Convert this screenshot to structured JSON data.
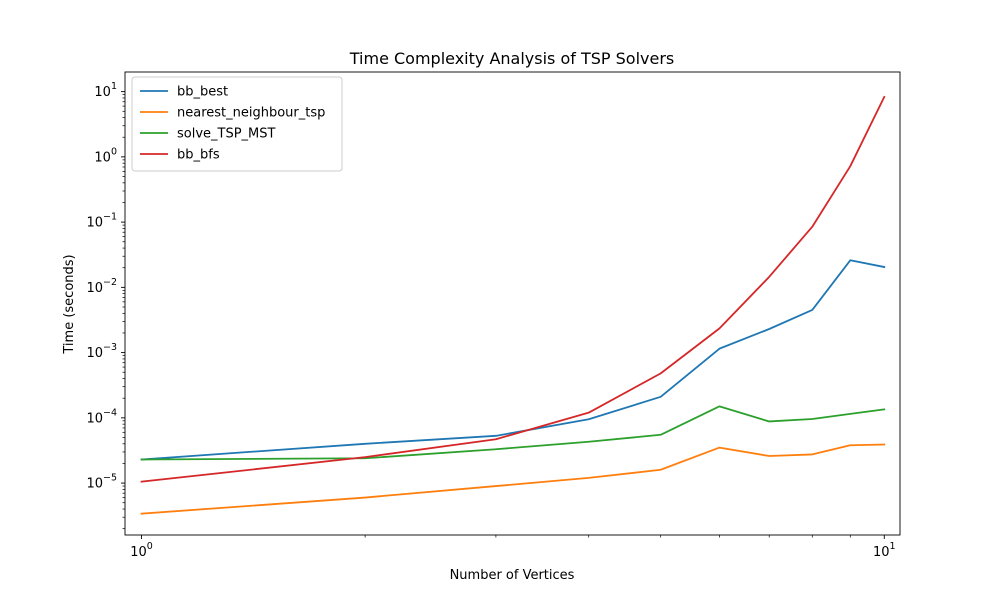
{
  "chart_data": {
    "type": "line",
    "title": "Time Complexity Analysis of TSP Solvers",
    "xlabel": "Number of Vertices",
    "ylabel": "Time (seconds)",
    "xscale": "log",
    "yscale": "log",
    "xlim": [
      0.95,
      10.5
    ],
    "ylim": [
      1.6e-06,
      20
    ],
    "x_ticks": [
      {
        "value": 1,
        "base": "10",
        "exp": "0"
      },
      {
        "value": 10,
        "base": "10",
        "exp": "1"
      }
    ],
    "y_ticks": [
      {
        "value": 1e-05,
        "base": "10",
        "exp": "−5"
      },
      {
        "value": 0.0001,
        "base": "10",
        "exp": "−4"
      },
      {
        "value": 0.001,
        "base": "10",
        "exp": "−3"
      },
      {
        "value": 0.01,
        "base": "10",
        "exp": "−2"
      },
      {
        "value": 0.1,
        "base": "10",
        "exp": "−1"
      },
      {
        "value": 1,
        "base": "10",
        "exp": "0"
      },
      {
        "value": 10,
        "base": "10",
        "exp": "1"
      }
    ],
    "x": [
      1,
      2,
      3,
      4,
      5,
      6,
      7,
      8,
      9,
      10
    ],
    "series": [
      {
        "name": "bb_best",
        "color": "#1f77b4",
        "values": [
          2.3e-05,
          4e-05,
          5.3e-05,
          9.5e-05,
          0.00021,
          0.00115,
          0.0023,
          0.0045,
          0.026,
          0.0205
        ]
      },
      {
        "name": "nearest_neighbour_tsp",
        "color": "#ff7f0e",
        "values": [
          3.4e-06,
          6e-06,
          9e-06,
          1.2e-05,
          1.6e-05,
          3.5e-05,
          2.6e-05,
          2.75e-05,
          3.8e-05,
          3.9e-05
        ]
      },
      {
        "name": "solve_TSP_MST",
        "color": "#2ca02c",
        "values": [
          2.3e-05,
          2.4e-05,
          3.3e-05,
          4.3e-05,
          5.5e-05,
          0.00015,
          8.8e-05,
          9.6e-05,
          0.000115,
          0.000135
        ]
      },
      {
        "name": "bb_bfs",
        "color": "#d62728",
        "values": [
          1.05e-05,
          2.5e-05,
          4.7e-05,
          0.00012,
          0.00048,
          0.00235,
          0.0145,
          0.085,
          0.72,
          8.3
        ]
      }
    ],
    "legend": "top-left",
    "grid": false
  }
}
